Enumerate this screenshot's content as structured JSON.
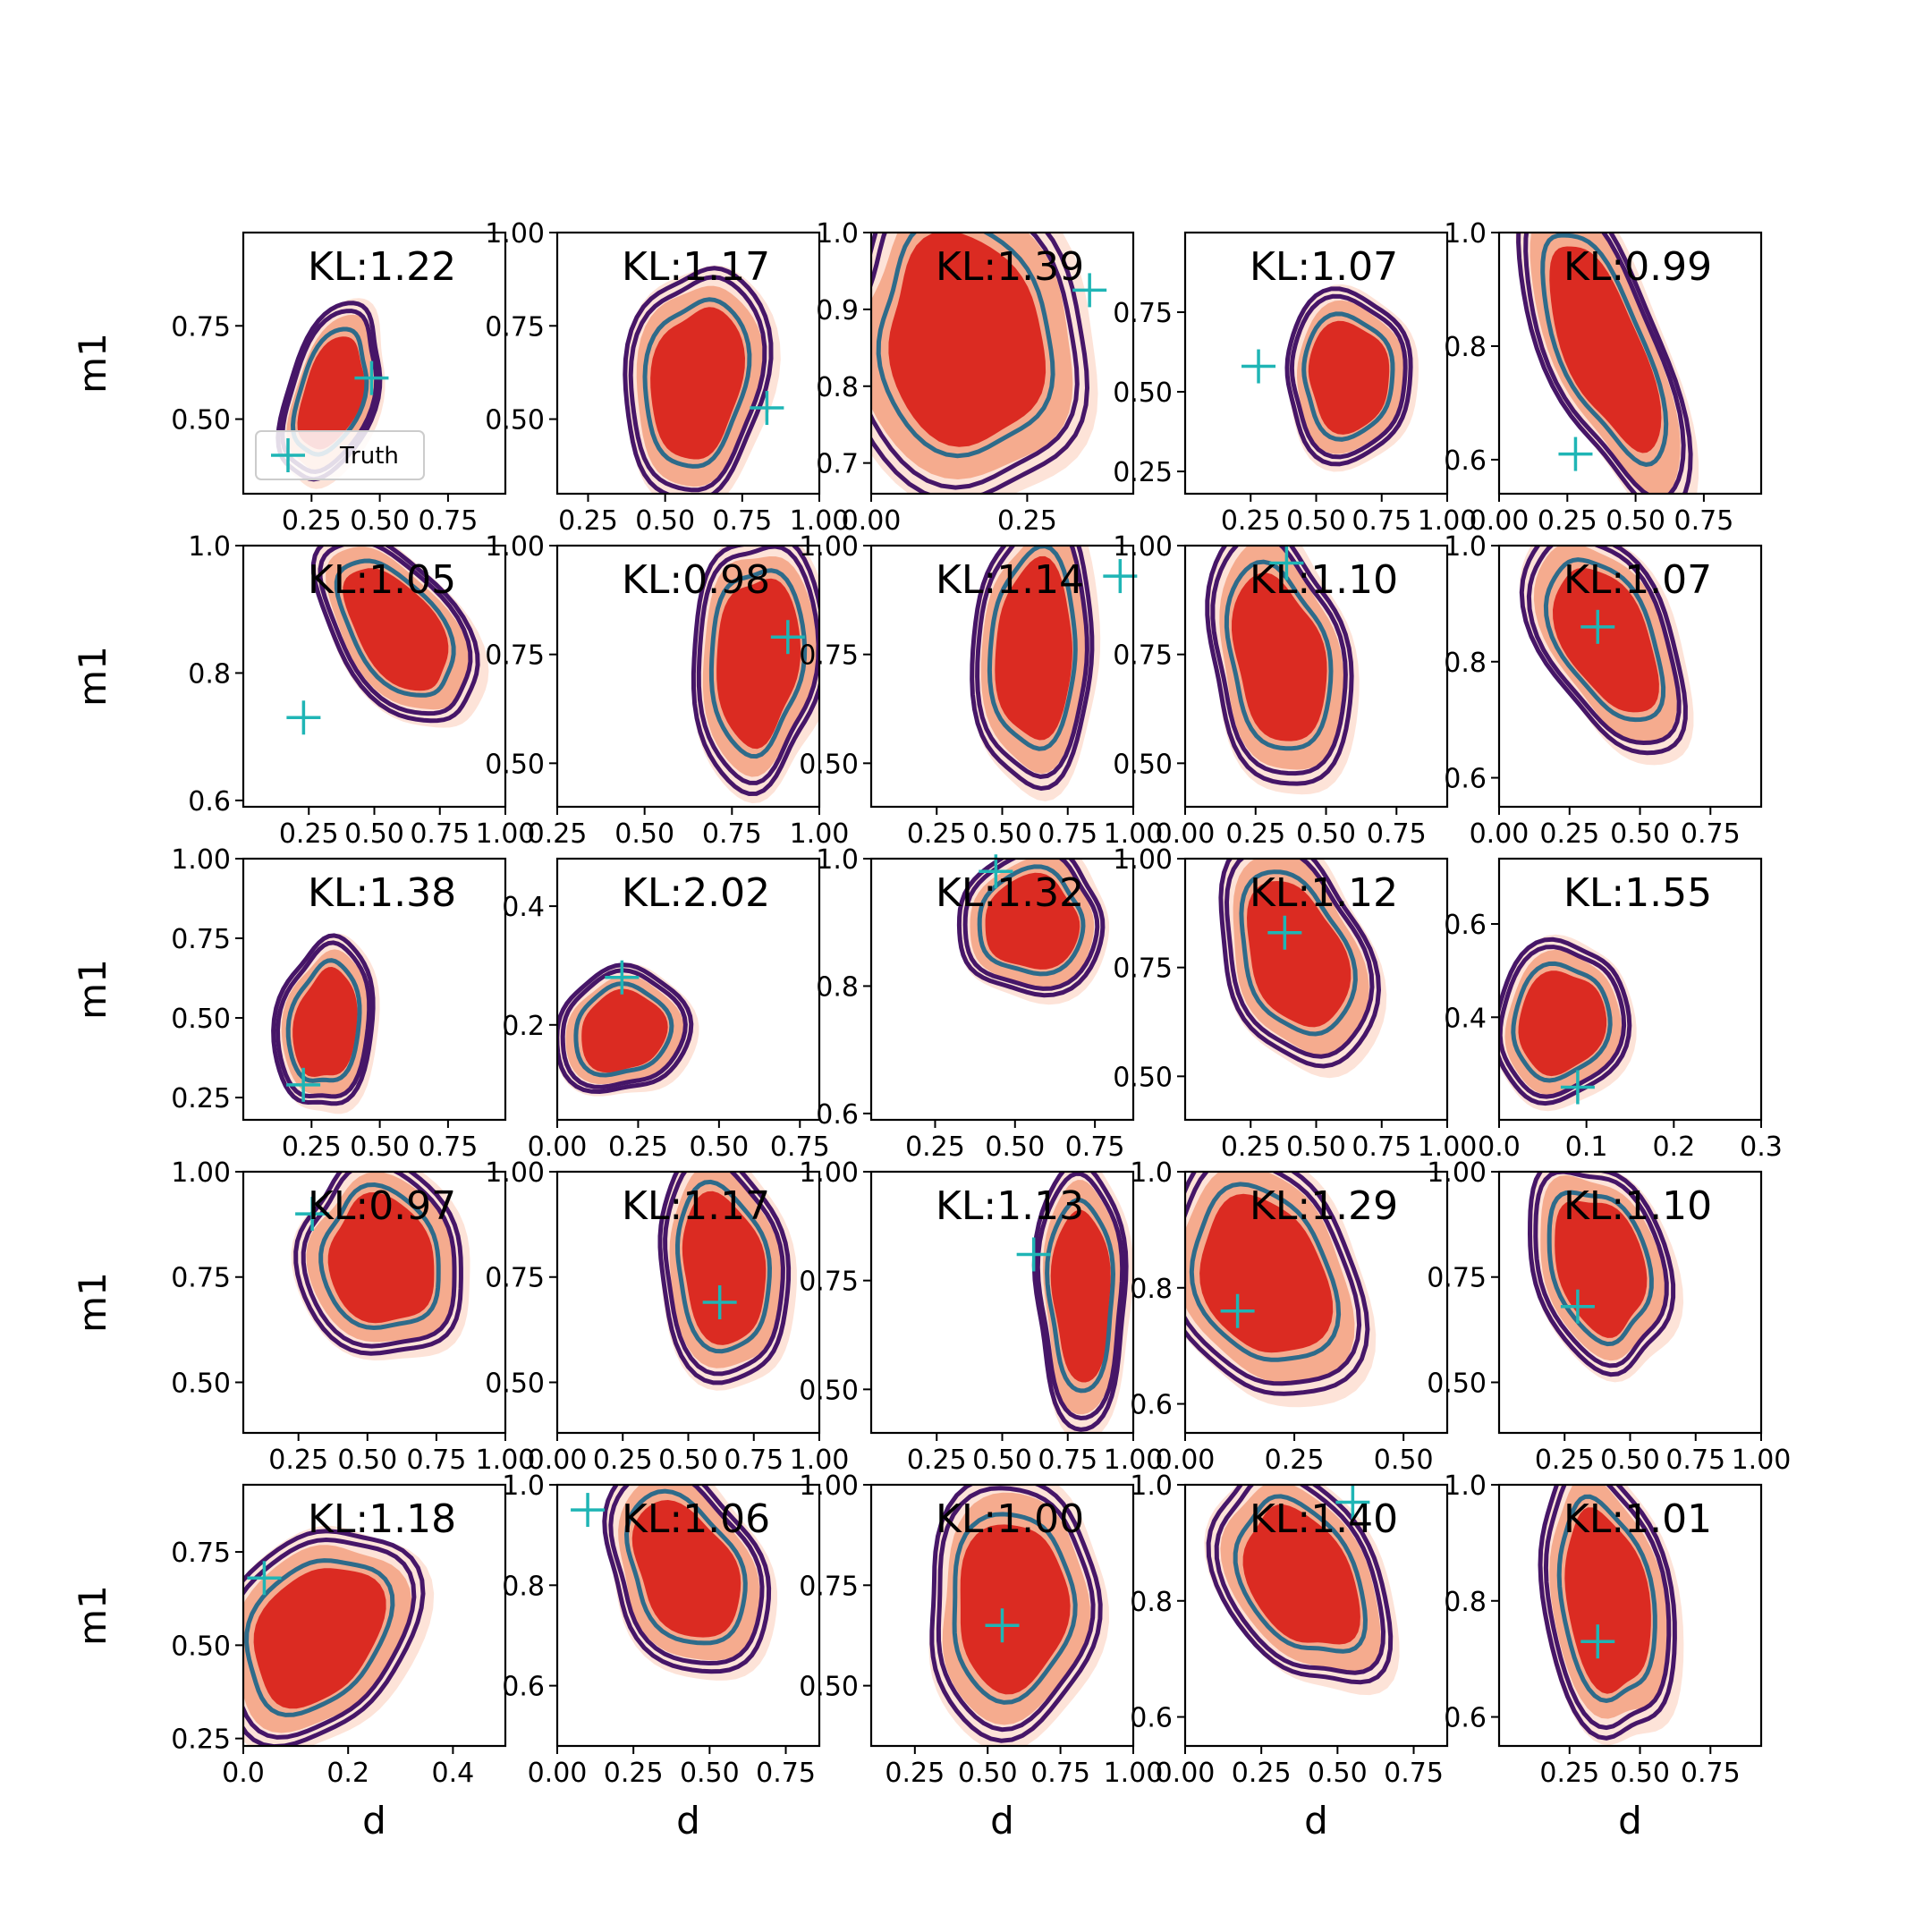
{
  "chart_data": {
    "type": "contour",
    "layout": {
      "rows": 5,
      "cols": 5
    },
    "xlabel": "d",
    "ylabel": "m1",
    "legend": {
      "label": "Truth",
      "placement": "lower-left",
      "panel": 0
    },
    "colors": {
      "fill_inner": "#db2b22",
      "fill_mid": "#f5ab8e",
      "fill_outer": "#fde3d8",
      "contour_outer": "#461668",
      "contour_inner": "#2e6b8a",
      "truth_marker": "#1fb5b5"
    },
    "panels": [
      {
        "kl": "KL:1.22",
        "xlim": [
          0.0,
          0.96
        ],
        "ylim": [
          0.3,
          1.0
        ],
        "xticks": [
          "0.25",
          "0.50",
          "0.75"
        ],
        "yticks": [
          "0.50",
          "0.75"
        ],
        "truth": [
          0.47,
          0.61
        ],
        "center": [
          0.32,
          0.57
        ],
        "spread": [
          0.26,
          0.42
        ],
        "tilt": 0.35
      },
      {
        "kl": "KL:1.17",
        "xlim": [
          0.15,
          1.0
        ],
        "ylim": [
          0.3,
          1.0
        ],
        "xticks": [
          "0.25",
          "0.50",
          "0.75",
          "1.00"
        ],
        "yticks": [
          "0.50",
          "0.75",
          "1.00"
        ],
        "truth": [
          0.83,
          0.53
        ],
        "center": [
          0.6,
          0.6
        ],
        "spread": [
          0.36,
          0.55
        ],
        "tilt": 0.1
      },
      {
        "kl": "KL:1.39",
        "xlim": [
          0.0,
          0.42
        ],
        "ylim": [
          0.66,
          1.0
        ],
        "xticks": [
          "0.00",
          "0.25"
        ],
        "yticks": [
          "0.7",
          "0.8",
          "0.9",
          "1.0"
        ],
        "truth": [
          0.35,
          0.925
        ],
        "center": [
          0.15,
          0.86
        ],
        "spread": [
          0.33,
          0.34
        ],
        "tilt": -0.3
      },
      {
        "kl": "KL:1.07",
        "xlim": [
          0.0,
          1.0
        ],
        "ylim": [
          0.18,
          1.0
        ],
        "xticks": [
          "0.25",
          "0.50",
          "0.75",
          "1.00"
        ],
        "yticks": [
          "0.25",
          "0.50",
          "0.75"
        ],
        "truth": [
          0.28,
          0.58
        ],
        "center": [
          0.62,
          0.55
        ],
        "spread": [
          0.42,
          0.42
        ],
        "tilt": 0.0
      },
      {
        "kl": "KL:0.99",
        "xlim": [
          0.0,
          0.96
        ],
        "ylim": [
          0.54,
          1.0
        ],
        "xticks": [
          "0.00",
          "0.25",
          "0.50",
          "0.75"
        ],
        "yticks": [
          "0.6",
          "0.8",
          "1.0"
        ],
        "truth": [
          0.28,
          0.61
        ],
        "center": [
          0.38,
          0.8
        ],
        "spread": [
          0.36,
          0.5
        ],
        "tilt": -0.35
      }
    ],
    "panels_row2": [
      {
        "kl": "KL:1.05",
        "xlim": [
          0.0,
          1.0
        ],
        "ylim": [
          0.59,
          1.0
        ],
        "xticks": [
          "0.25",
          "0.50",
          "0.75",
          "1.00"
        ],
        "yticks": [
          "0.6",
          "0.8",
          "1.0"
        ],
        "truth": [
          0.23,
          0.73
        ],
        "center": [
          0.58,
          0.87
        ],
        "spread": [
          0.36,
          0.3
        ],
        "tilt": -0.6
      },
      {
        "kl": "KL:0.98",
        "xlim": [
          0.25,
          1.0
        ],
        "ylim": [
          0.4,
          1.0
        ],
        "xticks": [
          "0.25",
          "0.50",
          "0.75",
          "1.00"
        ],
        "yticks": [
          "0.50",
          "0.75",
          "1.00"
        ],
        "truth": [
          0.91,
          0.79
        ],
        "center": [
          0.82,
          0.74
        ],
        "spread": [
          0.3,
          0.5
        ],
        "tilt": 0.0
      },
      {
        "kl": "KL:1.14",
        "xlim": [
          0.0,
          1.0
        ],
        "ylim": [
          0.4,
          1.0
        ],
        "xticks": [
          "0.25",
          "0.50",
          "0.75",
          "1.00"
        ],
        "yticks": [
          "0.50",
          "0.75",
          "1.00"
        ],
        "truth": [
          0.95,
          0.93
        ],
        "center": [
          0.62,
          0.76
        ],
        "spread": [
          0.4,
          0.5
        ],
        "tilt": 0.0
      },
      {
        "kl": "KL:1.10",
        "xlim": [
          0.0,
          0.93
        ],
        "ylim": [
          0.4,
          1.0
        ],
        "xticks": [
          "0.00",
          "0.25",
          "0.50",
          "0.75"
        ],
        "yticks": [
          "0.50",
          "0.75",
          "1.00"
        ],
        "truth": [
          0.36,
          0.96
        ],
        "center": [
          0.33,
          0.74
        ],
        "spread": [
          0.42,
          0.48
        ],
        "tilt": -0.15
      },
      {
        "kl": "KL:1.07",
        "xlim": [
          0.0,
          0.93
        ],
        "ylim": [
          0.55,
          1.0
        ],
        "xticks": [
          "0.00",
          "0.25",
          "0.50",
          "0.75"
        ],
        "yticks": [
          "0.6",
          "0.8",
          "1.0"
        ],
        "truth": [
          0.35,
          0.86
        ],
        "center": [
          0.38,
          0.84
        ],
        "spread": [
          0.37,
          0.36
        ],
        "tilt": -0.4
      }
    ],
    "panels_row3": [
      {
        "kl": "KL:1.38",
        "xlim": [
          0.0,
          0.96
        ],
        "ylim": [
          0.18,
          1.0
        ],
        "xticks": [
          "0.25",
          "0.50",
          "0.75"
        ],
        "yticks": [
          "0.25",
          "0.50",
          "0.75",
          "1.00"
        ],
        "truth": [
          0.22,
          0.29
        ],
        "center": [
          0.3,
          0.48
        ],
        "spread": [
          0.28,
          0.47
        ],
        "tilt": 0.1
      },
      {
        "kl": "KL:2.02",
        "xlim": [
          0.0,
          0.81
        ],
        "ylim": [
          0.04,
          0.48
        ],
        "xticks": [
          "0.00",
          "0.25",
          "0.50",
          "0.75"
        ],
        "yticks": [
          "0.2",
          "0.4"
        ],
        "truth": [
          0.2,
          0.28
        ],
        "center": [
          0.2,
          0.19
        ],
        "spread": [
          0.33,
          0.18
        ],
        "tilt": 0.35
      },
      {
        "kl": "KL:1.32",
        "xlim": [
          0.05,
          0.87
        ],
        "ylim": [
          0.59,
          1.0
        ],
        "xticks": [
          "0.25",
          "0.50",
          "0.75"
        ],
        "yticks": [
          "0.6",
          "0.8",
          "1.0"
        ],
        "truth": [
          0.44,
          0.98
        ],
        "center": [
          0.55,
          0.9
        ],
        "spread": [
          0.4,
          0.18
        ],
        "tilt": -0.55
      },
      {
        "kl": "KL:1.12",
        "xlim": [
          0.0,
          1.0
        ],
        "ylim": [
          0.4,
          1.0
        ],
        "xticks": [
          "0.25",
          "0.50",
          "0.75",
          "1.00"
        ],
        "yticks": [
          "0.50",
          "0.75",
          "1.00"
        ],
        "truth": [
          0.38,
          0.83
        ],
        "center": [
          0.42,
          0.78
        ],
        "spread": [
          0.46,
          0.44
        ],
        "tilt": -0.25
      },
      {
        "kl": "KL:1.55",
        "xlim": [
          0.0,
          0.3
        ],
        "ylim": [
          0.18,
          0.74
        ],
        "xticks": [
          "0.0",
          "0.1",
          "0.2",
          "0.3"
        ],
        "yticks": [
          "0.4",
          "0.6"
        ],
        "truth": [
          0.09,
          0.25
        ],
        "center": [
          0.07,
          0.39
        ],
        "spread": [
          0.12,
          0.3
        ],
        "tilt": 0.35
      }
    ],
    "panels_row4": [
      {
        "kl": "KL:0.97",
        "xlim": [
          0.05,
          1.0
        ],
        "ylim": [
          0.38,
          1.0
        ],
        "xticks": [
          "0.25",
          "0.50",
          "0.75",
          "1.00"
        ],
        "yticks": [
          "0.50",
          "0.75",
          "1.00"
        ],
        "truth": [
          0.3,
          0.9
        ],
        "center": [
          0.55,
          0.79
        ],
        "spread": [
          0.48,
          0.4
        ],
        "tilt": -0.45
      },
      {
        "kl": "KL:1.17",
        "xlim": [
          0.0,
          1.0
        ],
        "ylim": [
          0.38,
          1.0
        ],
        "xticks": [
          "0.00",
          "0.25",
          "0.50",
          "0.75",
          "1.00"
        ],
        "yticks": [
          "0.50",
          "0.75",
          "1.00"
        ],
        "truth": [
          0.62,
          0.69
        ],
        "center": [
          0.63,
          0.77
        ],
        "spread": [
          0.42,
          0.44
        ],
        "tilt": -0.2
      },
      {
        "kl": "KL:1.13",
        "xlim": [
          0.0,
          1.0
        ],
        "ylim": [
          0.4,
          1.0
        ],
        "xticks": [
          "0.25",
          "0.50",
          "0.75",
          "1.00"
        ],
        "yticks": [
          "0.50",
          "0.75",
          "1.00"
        ],
        "truth": [
          0.62,
          0.81
        ],
        "center": [
          0.8,
          0.72
        ],
        "spread": [
          0.3,
          0.48
        ],
        "tilt": 0.0
      },
      {
        "kl": "KL:1.29",
        "xlim": [
          0.0,
          0.6
        ],
        "ylim": [
          0.55,
          1.0
        ],
        "xticks": [
          "0.00",
          "0.25",
          "0.50"
        ],
        "yticks": [
          "0.6",
          "0.8",
          "1.0"
        ],
        "truth": [
          0.12,
          0.76
        ],
        "center": [
          0.18,
          0.82
        ],
        "spread": [
          0.35,
          0.37
        ],
        "tilt": -0.25
      },
      {
        "kl": "KL:1.10",
        "xlim": [
          0.0,
          1.0
        ],
        "ylim": [
          0.38,
          1.0
        ],
        "xticks": [
          "0.25",
          "0.50",
          "0.75",
          "1.00"
        ],
        "yticks": [
          "0.50",
          "0.75",
          "1.00"
        ],
        "truth": [
          0.3,
          0.68
        ],
        "center": [
          0.38,
          0.78
        ],
        "spread": [
          0.4,
          0.45
        ],
        "tilt": -0.3
      }
    ],
    "panels_row5": [
      {
        "kl": "KL:1.18",
        "xlim": [
          0.0,
          0.5
        ],
        "ylim": [
          0.23,
          0.93
        ],
        "xticks": [
          "0.0",
          "0.2",
          "0.4"
        ],
        "yticks": [
          "0.25",
          "0.50",
          "0.75"
        ],
        "truth": [
          0.04,
          0.68
        ],
        "center": [
          0.14,
          0.53
        ],
        "spread": [
          0.28,
          0.52
        ],
        "tilt": 0.45
      },
      {
        "kl": "KL:1.06",
        "xlim": [
          0.0,
          0.86
        ],
        "ylim": [
          0.48,
          1.0
        ],
        "xticks": [
          "0.00",
          "0.25",
          "0.50",
          "0.75"
        ],
        "yticks": [
          "0.6",
          "0.8",
          "1.0"
        ],
        "truth": [
          0.1,
          0.95
        ],
        "center": [
          0.42,
          0.83
        ],
        "spread": [
          0.42,
          0.35
        ],
        "tilt": -0.5
      },
      {
        "kl": "KL:1.00",
        "xlim": [
          0.1,
          1.0
        ],
        "ylim": [
          0.35,
          1.0
        ],
        "xticks": [
          "0.25",
          "0.50",
          "0.75",
          "1.00"
        ],
        "yticks": [
          "0.50",
          "0.75",
          "1.00"
        ],
        "truth": [
          0.55,
          0.65
        ],
        "center": [
          0.58,
          0.7
        ],
        "spread": [
          0.5,
          0.52
        ],
        "tilt": 0.15
      },
      {
        "kl": "KL:1.40",
        "xlim": [
          0.0,
          0.86
        ],
        "ylim": [
          0.55,
          1.0
        ],
        "xticks": [
          "0.00",
          "0.25",
          "0.50",
          "0.75"
        ],
        "yticks": [
          "0.6",
          "0.8",
          "1.0"
        ],
        "truth": [
          0.55,
          0.97
        ],
        "center": [
          0.38,
          0.84
        ],
        "spread": [
          0.4,
          0.35
        ],
        "tilt": -0.45
      },
      {
        "kl": "KL:1.01",
        "xlim": [
          0.0,
          0.93
        ],
        "ylim": [
          0.55,
          1.0
        ],
        "xticks": [
          "0.25",
          "0.50",
          "0.75"
        ],
        "yticks": [
          "0.6",
          "0.8",
          "1.0"
        ],
        "truth": [
          0.35,
          0.73
        ],
        "center": [
          0.38,
          0.8
        ],
        "spread": [
          0.36,
          0.42
        ],
        "tilt": -0.2
      }
    ]
  }
}
